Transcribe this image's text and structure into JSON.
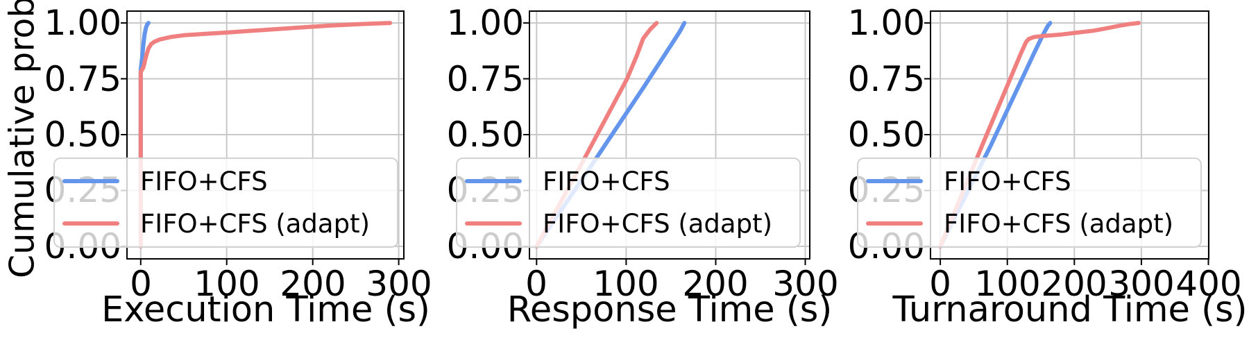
{
  "figure": {
    "ylabel": "Cumulative prob",
    "background": "#ffffff",
    "grid_color": "#c8c8c8",
    "spine_color": "#000000",
    "legend": {
      "background": "rgba(255,255,255,0.8)",
      "border_color": "#d2d2d2",
      "position": "lower left",
      "items": [
        "FIFO+CFS",
        "FIFO+CFS (adapt)"
      ]
    },
    "series_colors": {
      "fifo_cfs": "#6495ED",
      "fifo_cfs_adapt": "#F08080"
    }
  },
  "chart_data": [
    {
      "type": "line",
      "title": "",
      "xlabel": "Execution Time (s)",
      "ylabel": "Cumulative prob",
      "grid": true,
      "legend_position": "lower left",
      "xticks": [
        0,
        100,
        200,
        300
      ],
      "xtick_labels": [
        "0",
        "100",
        "200",
        "300"
      ],
      "yticks": [
        0,
        0.25,
        0.5,
        0.75,
        1.0
      ],
      "ytick_labels": [
        "0.00",
        "0.25",
        "0.50",
        "0.75",
        "1.00"
      ],
      "xlim": [
        -16,
        306
      ],
      "ylim": [
        -0.056,
        1.053
      ],
      "series": [
        {
          "name": "FIFO+CFS",
          "color": "#6495ED",
          "points": [
            [
              0,
              0
            ],
            [
              0,
              0.79
            ],
            [
              1.5,
              0.84
            ],
            [
              3,
              0.9
            ],
            [
              4.5,
              0.95
            ],
            [
              6,
              0.978
            ],
            [
              7.5,
              0.993
            ],
            [
              9,
              1.0
            ]
          ]
        },
        {
          "name": "FIFO+CFS (adapt)",
          "color": "#F08080",
          "points": [
            [
              0,
              0
            ],
            [
              0,
              0.78
            ],
            [
              3,
              0.8
            ],
            [
              4,
              0.815
            ],
            [
              5,
              0.832
            ],
            [
              7,
              0.862
            ],
            [
              9,
              0.886
            ],
            [
              12,
              0.905
            ],
            [
              16,
              0.916
            ],
            [
              22,
              0.926
            ],
            [
              35,
              0.937
            ],
            [
              50,
              0.945
            ],
            [
              75,
              0.951
            ],
            [
              100,
              0.957
            ],
            [
              130,
              0.965
            ],
            [
              160,
              0.973
            ],
            [
              190,
              0.981
            ],
            [
              220,
              0.988
            ],
            [
              250,
              0.994
            ],
            [
              270,
              0.997
            ],
            [
              290,
              1.0
            ]
          ]
        }
      ]
    },
    {
      "type": "line",
      "title": "",
      "xlabel": "Response Time (s)",
      "ylabel": "",
      "grid": true,
      "legend_position": "lower left",
      "xticks": [
        0,
        100,
        200,
        300
      ],
      "xtick_labels": [
        "0",
        "100",
        "200",
        "300"
      ],
      "yticks": [
        0,
        0.25,
        0.5,
        0.75,
        1.0
      ],
      "ytick_labels": [
        "0.00",
        "0.25",
        "0.50",
        "0.75",
        "1.00"
      ],
      "xlim": [
        -8,
        305
      ],
      "ylim": [
        -0.056,
        1.053
      ],
      "series": [
        {
          "name": "FIFO+CFS",
          "color": "#6495ED",
          "points": [
            [
              0,
              0
            ],
            [
              60,
              0.355
            ],
            [
              120,
              0.715
            ],
            [
              150,
              0.9
            ],
            [
              160,
              0.962
            ],
            [
              165,
              1.0
            ]
          ]
        },
        {
          "name": "FIFO+CFS (adapt)",
          "color": "#F08080",
          "points": [
            [
              0,
              0
            ],
            [
              50,
              0.368
            ],
            [
              101,
              0.75
            ],
            [
              112,
              0.855
            ],
            [
              119,
              0.93
            ],
            [
              127,
              0.972
            ],
            [
              134,
              1.0
            ]
          ]
        }
      ]
    },
    {
      "type": "line",
      "title": "",
      "xlabel": "Turnaround Time (s)",
      "ylabel": "",
      "grid": true,
      "legend_position": "lower left",
      "xticks": [
        0,
        100,
        200,
        300,
        400
      ],
      "xtick_labels": [
        "0",
        "100",
        "200",
        "300",
        "400"
      ],
      "yticks": [
        0,
        0.25,
        0.5,
        0.75,
        1.0
      ],
      "ytick_labels": [
        "0.00",
        "0.25",
        "0.50",
        "0.75",
        "1.00"
      ],
      "xlim": [
        -14.6,
        400.5
      ],
      "ylim": [
        -0.056,
        1.053
      ],
      "series": [
        {
          "name": "FIFO+CFS",
          "color": "#6495ED",
          "points": [
            [
              0,
              0
            ],
            [
              75,
              0.45
            ],
            [
              140,
              0.865
            ],
            [
              152,
              0.94
            ],
            [
              160,
              0.985
            ],
            [
              164,
              1.0
            ]
          ]
        },
        {
          "name": "FIFO+CFS (adapt)",
          "color": "#F08080",
          "points": [
            [
              0,
              0
            ],
            [
              65,
              0.47
            ],
            [
              120,
              0.862
            ],
            [
              128,
              0.915
            ],
            [
              132,
              0.928
            ],
            [
              140,
              0.937
            ],
            [
              155,
              0.942
            ],
            [
              180,
              0.948
            ],
            [
              205,
              0.957
            ],
            [
              228,
              0.965
            ],
            [
              248,
              0.976
            ],
            [
              268,
              0.988
            ],
            [
              282,
              0.995
            ],
            [
              296,
              1.0
            ]
          ]
        }
      ]
    }
  ]
}
